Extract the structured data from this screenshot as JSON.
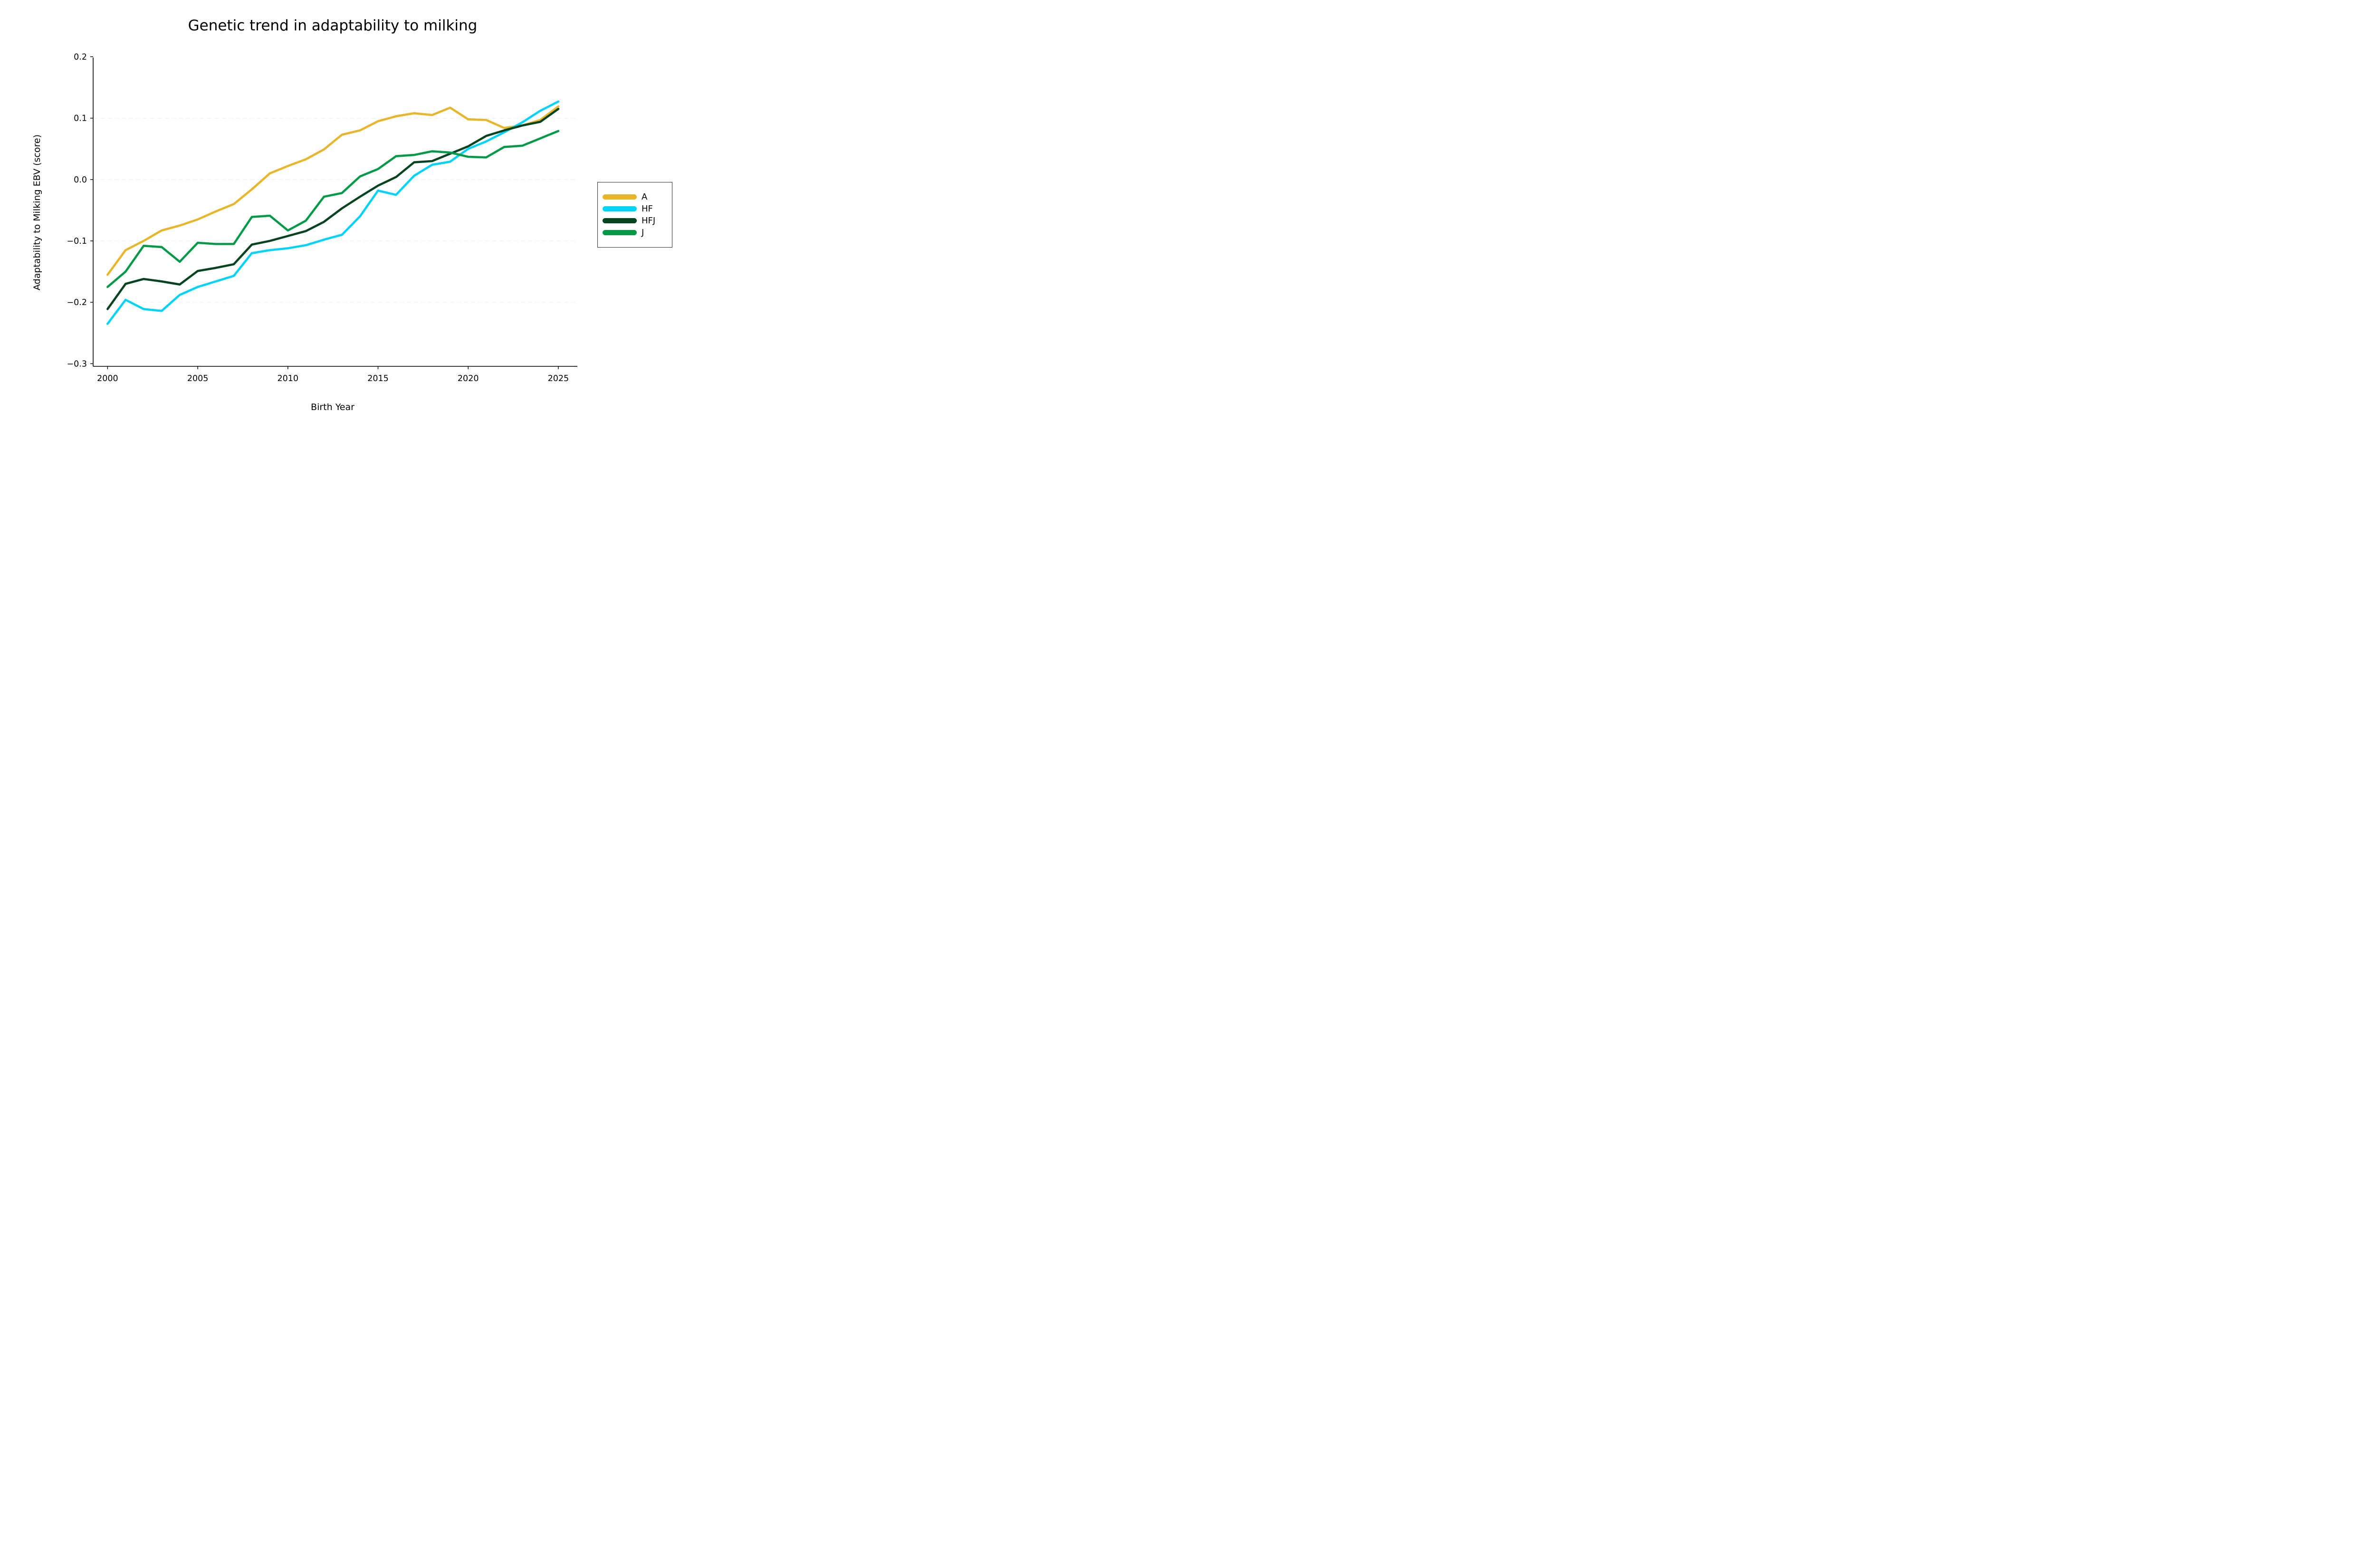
{
  "chart_data": {
    "type": "line",
    "title": "Genetic trend in adaptability to milking",
    "xlabel": "Birth Year",
    "ylabel": "Adaptability to Milking EBV (score)",
    "x": [
      2000,
      2001,
      2002,
      2003,
      2004,
      2005,
      2006,
      2007,
      2008,
      2009,
      2010,
      2011,
      2012,
      2013,
      2014,
      2015,
      2016,
      2017,
      2018,
      2019,
      2020,
      2021,
      2022,
      2023,
      2024,
      2025
    ],
    "series": [
      {
        "name": "A",
        "color": "#E8B62A",
        "values": [
          -0.155,
          -0.115,
          -0.1,
          -0.083,
          -0.075,
          -0.065,
          -0.052,
          -0.04,
          -0.016,
          0.01,
          0.022,
          0.033,
          0.049,
          0.073,
          0.08,
          0.095,
          0.103,
          0.108,
          0.105,
          0.117,
          0.098,
          0.097,
          0.084,
          0.088,
          0.097,
          0.119
        ]
      },
      {
        "name": "HF",
        "color": "#00D3FA",
        "values": [
          -0.235,
          -0.196,
          -0.211,
          -0.214,
          -0.188,
          -0.175,
          -0.166,
          -0.157,
          -0.12,
          -0.115,
          -0.112,
          -0.107,
          -0.098,
          -0.09,
          -0.06,
          -0.018,
          -0.025,
          0.006,
          0.024,
          0.029,
          0.05,
          0.062,
          0.077,
          0.093,
          0.112,
          0.127
        ]
      },
      {
        "name": "HFJ",
        "color": "#05441F",
        "values": [
          -0.211,
          -0.17,
          -0.162,
          -0.166,
          -0.171,
          -0.149,
          -0.144,
          -0.138,
          -0.106,
          -0.1,
          -0.092,
          -0.084,
          -0.069,
          -0.047,
          -0.028,
          -0.01,
          0.004,
          0.028,
          0.03,
          0.042,
          0.054,
          0.071,
          0.08,
          0.088,
          0.094,
          0.115
        ]
      },
      {
        "name": "J",
        "color": "#029A49",
        "values": [
          -0.175,
          -0.15,
          -0.108,
          -0.11,
          -0.134,
          -0.103,
          -0.105,
          -0.105,
          -0.061,
          -0.059,
          -0.083,
          -0.067,
          -0.028,
          -0.022,
          0.005,
          0.017,
          0.038,
          0.04,
          0.046,
          0.044,
          0.037,
          0.036,
          0.053,
          0.055,
          0.067,
          0.079
        ]
      }
    ],
    "xticks": [
      "2000",
      "2005",
      "2010",
      "2015",
      "2020",
      "2025"
    ],
    "xtick_values": [
      2000,
      2005,
      2010,
      2015,
      2020,
      2025
    ],
    "yticks": [
      "0.2",
      "0.1",
      "0.0",
      "−0.1",
      "−0.2",
      "−0.3"
    ],
    "ytick_values": [
      0.2,
      0.1,
      0.0,
      -0.1,
      -0.2,
      -0.3
    ],
    "xlim": [
      1999.2,
      2026.1
    ],
    "ylim": [
      -0.305,
      0.2
    ],
    "grid": "faint dashed horizontal gridlines",
    "legend_position": "outside right, vertically centered",
    "line_style": "solid, rounded caps"
  }
}
